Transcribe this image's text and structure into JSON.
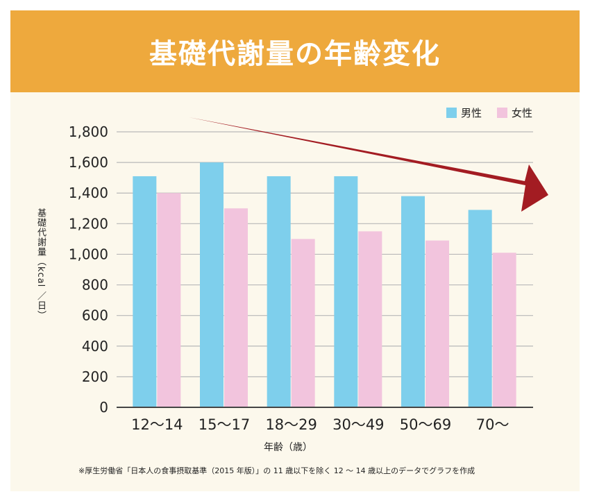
{
  "chart_data": {
    "type": "bar",
    "title": "基礎代謝量の年齢変化",
    "ylabel": "基礎代謝量（kcal ／日）",
    "xlabel": "年齢（歳）",
    "categories": [
      "12～14",
      "15～17",
      "18～29",
      "30～49",
      "50～69",
      "70～"
    ],
    "series": [
      {
        "name": "男性",
        "color": "#7ecfec",
        "values": [
          1510,
          1600,
          1510,
          1510,
          1380,
          1290
        ]
      },
      {
        "name": "女性",
        "color": "#f2c4dd",
        "values": [
          1400,
          1300,
          1100,
          1150,
          1090,
          1010
        ]
      }
    ],
    "yticks": [
      "0",
      "200",
      "400",
      "600",
      "800",
      "1,000",
      "1,200",
      "1,400",
      "1,600",
      "1,800"
    ],
    "ylim": [
      0,
      1800
    ],
    "grid": true,
    "legend_position": "top-right",
    "arrow_color": "#a31c22",
    "footnote": "※厚生労働省「日本人の食事摂取基準（2015 年版）」の 11 歳以下を除く 12 ～ 14 歳以上のデータでグラフを作成"
  }
}
